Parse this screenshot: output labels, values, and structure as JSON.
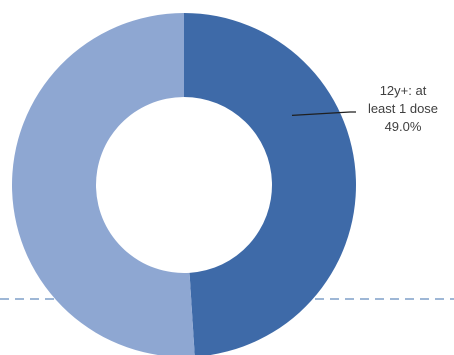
{
  "chart_data": {
    "type": "pie",
    "variant": "donut",
    "slices": [
      {
        "value": 49.0,
        "color": "#3e6aa8",
        "label_lines": [
          "12y+: at",
          "least 1 dose",
          "49.0%"
        ]
      },
      {
        "value": 51.0,
        "color": "#8ea7d2"
      }
    ],
    "reference_line": {
      "style": "dashed",
      "color": "#7f9fc9"
    }
  }
}
